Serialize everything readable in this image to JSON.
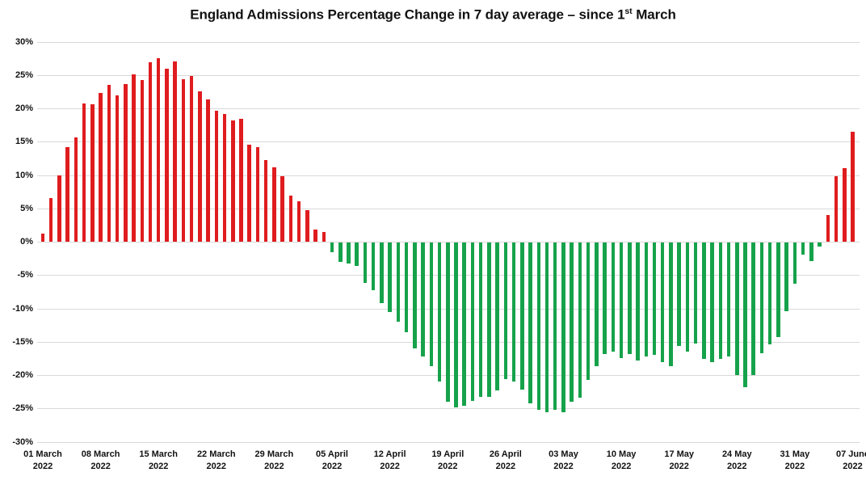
{
  "title": {
    "text_before_sup": "England Admissions Percentage Change in 7 day average – since 1",
    "sup": "st",
    "text_after_sup": " March",
    "full": "England Admissions Percentage Change in 7 day average – since 1st March"
  },
  "colors": {
    "positive_bar": "#df1c1e",
    "negative_bar": "#16a24b",
    "gridline": "#d9d9d9",
    "text": "#111111",
    "background": "#ffffff"
  },
  "y_axis": {
    "min": -30,
    "max": 30,
    "step": 5,
    "tick_labels": [
      "30%",
      "25%",
      "20%",
      "15%",
      "10%",
      "5%",
      "0%",
      "-5%",
      "-10%",
      "-15%",
      "-20%",
      "-25%",
      "-30%"
    ]
  },
  "x_axis": {
    "tick_every_days": 7,
    "tick_labels": [
      {
        "date": "01 March",
        "year": "2022"
      },
      {
        "date": "08 March",
        "year": "2022"
      },
      {
        "date": "15 March",
        "year": "2022"
      },
      {
        "date": "22 March",
        "year": "2022"
      },
      {
        "date": "29 March",
        "year": "2022"
      },
      {
        "date": "05 April",
        "year": "2022"
      },
      {
        "date": "12 April",
        "year": "2022"
      },
      {
        "date": "19 April",
        "year": "2022"
      },
      {
        "date": "26 April",
        "year": "2022"
      },
      {
        "date": "03 May",
        "year": "2022"
      },
      {
        "date": "10 May",
        "year": "2022"
      },
      {
        "date": "17 May",
        "year": "2022"
      },
      {
        "date": "24 May",
        "year": "2022"
      },
      {
        "date": "31 May",
        "year": "2022"
      },
      {
        "date": "07 June",
        "year": "2022"
      }
    ]
  },
  "chart_data": {
    "type": "bar",
    "title": "England Admissions Percentage Change in 7 day average – since 1st March",
    "xlabel": "",
    "ylabel": "",
    "ylim": [
      -30,
      30
    ],
    "ytick_step": 5,
    "grid": true,
    "legend": false,
    "positive_color": "#df1c1e",
    "negative_color": "#16a24b",
    "x": [
      "01 March 2022",
      "02 March 2022",
      "03 March 2022",
      "04 March 2022",
      "05 March 2022",
      "06 March 2022",
      "07 March 2022",
      "08 March 2022",
      "09 March 2022",
      "10 March 2022",
      "11 March 2022",
      "12 March 2022",
      "13 March 2022",
      "14 March 2022",
      "15 March 2022",
      "16 March 2022",
      "17 March 2022",
      "18 March 2022",
      "19 March 2022",
      "20 March 2022",
      "21 March 2022",
      "22 March 2022",
      "23 March 2022",
      "24 March 2022",
      "25 March 2022",
      "26 March 2022",
      "27 March 2022",
      "28 March 2022",
      "29 March 2022",
      "30 March 2022",
      "31 March 2022",
      "01 April 2022",
      "02 April 2022",
      "03 April 2022",
      "04 April 2022",
      "05 April 2022",
      "06 April 2022",
      "07 April 2022",
      "08 April 2022",
      "09 April 2022",
      "10 April 2022",
      "11 April 2022",
      "12 April 2022",
      "13 April 2022",
      "14 April 2022",
      "15 April 2022",
      "16 April 2022",
      "17 April 2022",
      "18 April 2022",
      "19 April 2022",
      "20 April 2022",
      "21 April 2022",
      "22 April 2022",
      "23 April 2022",
      "24 April 2022",
      "25 April 2022",
      "26 April 2022",
      "27 April 2022",
      "28 April 2022",
      "29 April 2022",
      "30 April 2022",
      "01 May 2022",
      "02 May 2022",
      "03 May 2022",
      "04 May 2022",
      "05 May 2022",
      "06 May 2022",
      "07 May 2022",
      "08 May 2022",
      "09 May 2022",
      "10 May 2022",
      "11 May 2022",
      "12 May 2022",
      "13 May 2022",
      "14 May 2022",
      "15 May 2022",
      "16 May 2022",
      "17 May 2022",
      "18 May 2022",
      "19 May 2022",
      "20 May 2022",
      "21 May 2022",
      "22 May 2022",
      "23 May 2022",
      "24 May 2022",
      "25 May 2022",
      "26 May 2022",
      "27 May 2022",
      "28 May 2022",
      "29 May 2022",
      "30 May 2022",
      "31 May 2022",
      "01 June 2022",
      "02 June 2022",
      "03 June 2022",
      "04 June 2022",
      "05 June 2022",
      "06 June 2022",
      "07 June 2022"
    ],
    "values": [
      1.2,
      6.6,
      10.0,
      14.2,
      15.7,
      20.7,
      20.6,
      22.3,
      23.5,
      21.9,
      23.6,
      25.1,
      24.3,
      26.9,
      27.5,
      26.0,
      27.0,
      24.4,
      24.8,
      22.6,
      21.3,
      19.7,
      19.2,
      18.2,
      18.4,
      14.5,
      14.2,
      12.3,
      11.2,
      9.8,
      6.9,
      6.1,
      4.7,
      1.8,
      1.5,
      -1.4,
      -2.9,
      -3.1,
      -3.5,
      -6.0,
      -7.1,
      -9.1,
      -10.4,
      -11.9,
      -13.4,
      -15.9,
      -17.1,
      -18.5,
      -20.9,
      -23.9,
      -24.7,
      -24.5,
      -23.7,
      -23.2,
      -23.2,
      -22.2,
      -20.5,
      -20.9,
      -22.1,
      -24.1,
      -25.1,
      -25.5,
      -25.1,
      -25.5,
      -23.9,
      -23.3,
      -20.6,
      -18.5,
      -16.7,
      -16.3,
      -17.3,
      -16.7,
      -17.7,
      -17.1,
      -16.9,
      -17.9,
      -18.5,
      -15.5,
      -16.3,
      -15.2,
      -17.5,
      -17.9,
      -17.5,
      -17.1,
      -19.9,
      -21.7,
      -19.9,
      -16.6,
      -15.3,
      -14.2,
      -10.3,
      -6.2,
      -1.8,
      -2.8,
      -0.6,
      4.0,
      9.8,
      11.0,
      16.5
    ]
  }
}
